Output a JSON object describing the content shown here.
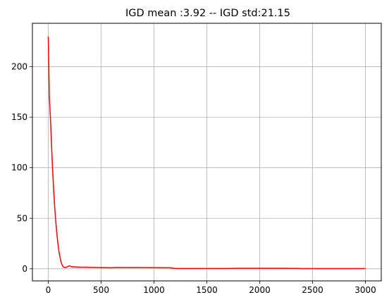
{
  "chart_data": {
    "type": "line",
    "title": "IGD mean :3.92 -- IGD std:21.15",
    "xlabel": "",
    "ylabel": "",
    "xlim": [
      -150,
      3150
    ],
    "ylim": [
      -12,
      243
    ],
    "xticks": [
      0,
      500,
      1000,
      1500,
      2000,
      2500,
      3000
    ],
    "xtick_labels": [
      "0",
      "500",
      "1000",
      "1500",
      "2000",
      "2500",
      "3000"
    ],
    "yticks": [
      0,
      50,
      100,
      150,
      200
    ],
    "ytick_labels": [
      "0",
      "50",
      "100",
      "150",
      "200"
    ],
    "grid": true,
    "legend": false,
    "series": [
      {
        "color": "#ff0000",
        "x": [
          0,
          5,
          10,
          20,
          30,
          40,
          50,
          60,
          70,
          80,
          90,
          100,
          110,
          120,
          130,
          140,
          150,
          160,
          170,
          180,
          190,
          200,
          210,
          220,
          240,
          260,
          300,
          350,
          400,
          450,
          500,
          550,
          600,
          650,
          700,
          800,
          900,
          1000,
          1100,
          1150,
          1200,
          1250,
          1300,
          1400,
          1500,
          1600,
          1700,
          1800,
          1900,
          2000,
          2100,
          2200,
          2300,
          2350,
          2400,
          2500,
          2600,
          2700,
          2800,
          2900,
          3000
        ],
        "y": [
          230,
          200,
          170,
          150,
          125,
          100,
          80,
          62,
          48,
          36,
          26,
          18,
          12,
          7,
          4,
          2,
          1.5,
          1.2,
          1.5,
          2,
          2.5,
          3,
          2.5,
          2,
          2,
          1.8,
          1.6,
          1.5,
          1.4,
          1.3,
          1.2,
          1.1,
          1.0,
          1.3,
          1.2,
          1.2,
          1.2,
          1.1,
          1.0,
          1.0,
          0.3,
          0.3,
          0.3,
          0.3,
          0.3,
          0.3,
          0.3,
          0.5,
          0.5,
          0.5,
          0.5,
          0.5,
          0.4,
          0.4,
          0.2,
          0.2,
          0.2,
          0.2,
          0.2,
          0.2,
          0.2
        ]
      }
    ]
  }
}
